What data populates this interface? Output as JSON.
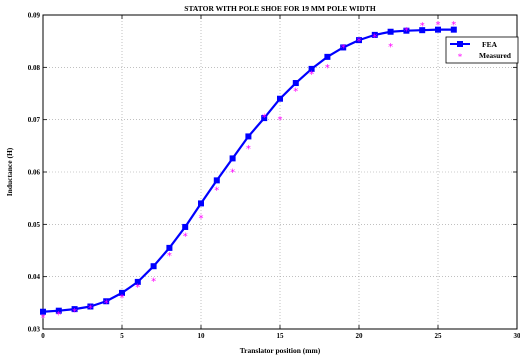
{
  "chart_data": {
    "type": "line",
    "title": "STATOR WITH POLE SHOE FOR 19 MM POLE WIDTH",
    "xlabel": "Translator position (mm)",
    "ylabel": "Inductance (H)",
    "xlim": [
      0,
      30
    ],
    "ylim": [
      0.03,
      0.09
    ],
    "xticks": [
      0,
      5,
      10,
      15,
      20,
      25,
      30
    ],
    "yticks": [
      0.03,
      0.04,
      0.05,
      0.06,
      0.07,
      0.08,
      0.09
    ],
    "xtick_labels": [
      "0",
      "5",
      "10",
      "15",
      "20",
      "25",
      "30"
    ],
    "ytick_labels": [
      "0.03",
      "0.04",
      "0.05",
      "0.06",
      "0.07",
      "0.08",
      "0.09"
    ],
    "grid": true,
    "legend_position": "top-right",
    "series": [
      {
        "name": "FEA",
        "style": "line-with-square-markers",
        "color": "#0000ff",
        "x": [
          0,
          1,
          2,
          3,
          4,
          5,
          6,
          7,
          8,
          9,
          10,
          11,
          12,
          13,
          14,
          15,
          16,
          17,
          18,
          19,
          20,
          21,
          22,
          23,
          24,
          25,
          26
        ],
        "y": [
          0.0333,
          0.0335,
          0.0338,
          0.0343,
          0.0353,
          0.0369,
          0.039,
          0.042,
          0.0455,
          0.0495,
          0.054,
          0.0584,
          0.0626,
          0.0668,
          0.0703,
          0.074,
          0.077,
          0.0797,
          0.082,
          0.0838,
          0.0852,
          0.0862,
          0.0868,
          0.087,
          0.0871,
          0.0872,
          0.0872
        ]
      },
      {
        "name": "Measured",
        "style": "star-markers",
        "color": "#ff00ff",
        "x": [
          0,
          1,
          2,
          3,
          4,
          5,
          6,
          7,
          8,
          9,
          10,
          11,
          12,
          13,
          14,
          15,
          16,
          17,
          18,
          19,
          20,
          21,
          22,
          23,
          24,
          25,
          26
        ],
        "y": [
          0.0322,
          0.0328,
          0.0333,
          0.034,
          0.035,
          0.036,
          0.038,
          0.0392,
          0.044,
          0.0478,
          0.0512,
          0.0566,
          0.06,
          0.0645,
          0.0705,
          0.07,
          0.0755,
          0.0787,
          0.08,
          0.0838,
          0.085,
          0.0858,
          0.084,
          0.087,
          0.088,
          0.0882,
          0.0882
        ]
      }
    ]
  }
}
